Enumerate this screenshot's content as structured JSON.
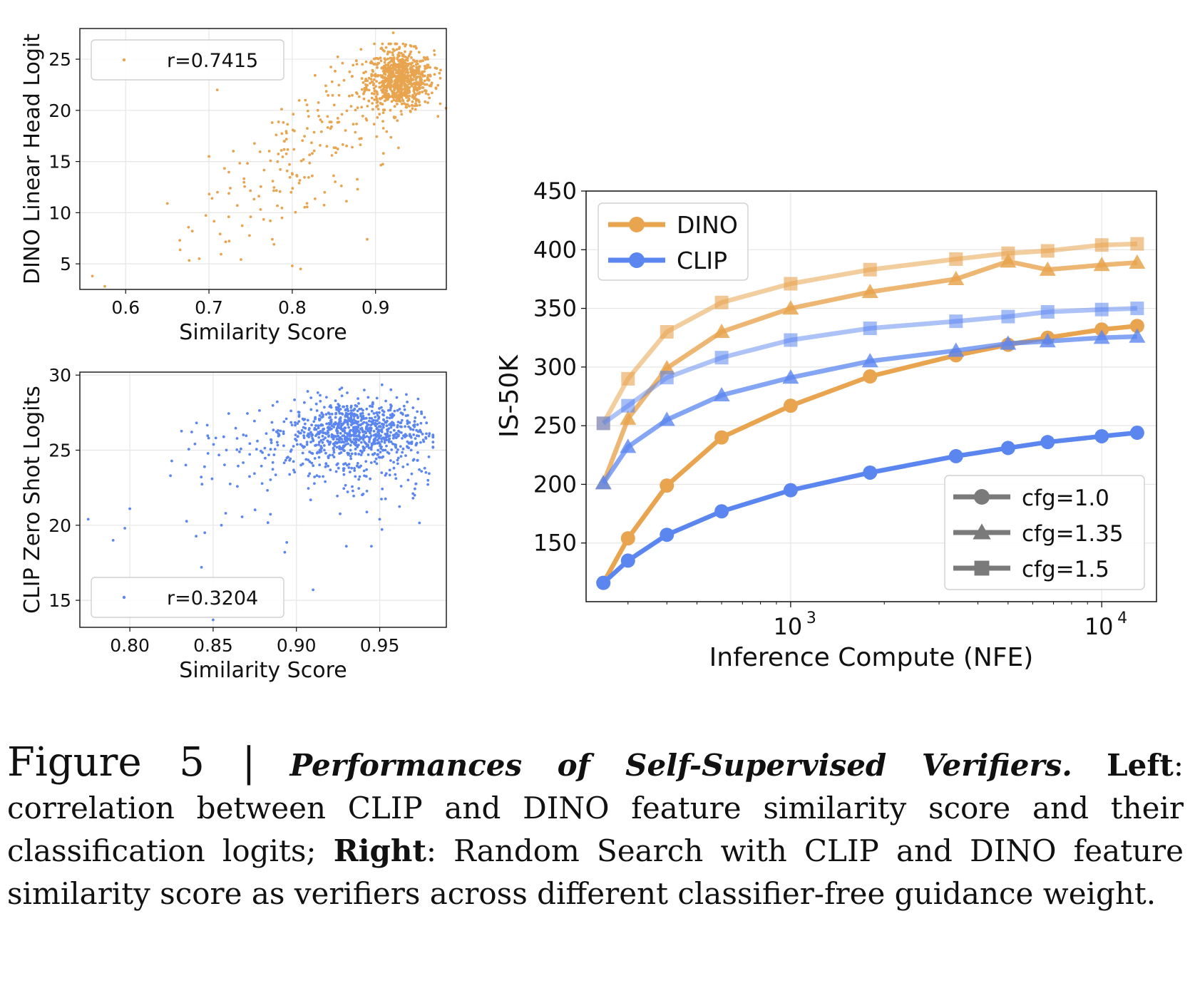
{
  "figure_label": "Figure 5",
  "caption_separator": "|",
  "caption_title": "Performances of Self-Supervised Verifiers.",
  "caption_left_label": "Left",
  "caption_left_text": ": correlation between CLIP and DINO feature similarity score and their classification logits;",
  "caption_right_label": "Right",
  "caption_right_text": ": Random Search with CLIP and DINO feature similarity score as verifiers across different classifier-free guidance weight.",
  "colors": {
    "dino": "#e8a44f",
    "clip": "#5b86f0",
    "legend_gray": "#7a7a7a",
    "grid": "#e6e6e6"
  },
  "chart_data": [
    {
      "id": "dino-scatter",
      "type": "scatter",
      "xlabel": "Similarity Score",
      "ylabel": "DINO Linear Head Logit",
      "xlim": [
        0.545,
        0.985
      ],
      "ylim": [
        2.5,
        28
      ],
      "xticks": [
        0.6,
        0.7,
        0.8,
        0.9
      ],
      "yticks": [
        5,
        10,
        15,
        20,
        25
      ],
      "xtick_labels": [
        "0.6",
        "0.7",
        "0.8",
        "0.9"
      ],
      "ytick_labels": [
        "5",
        "10",
        "15",
        "20",
        "25"
      ],
      "legend": "r=0.7415",
      "legend_loc": "upper left",
      "grid": true,
      "color": "#e8a44f",
      "point_count": 1000,
      "correlation": 0.7415,
      "cluster_center": [
        0.93,
        23
      ],
      "outliers": [
        [
          0.56,
          3.8
        ],
        [
          0.575,
          2.8
        ],
        [
          0.65,
          10.9
        ],
        [
          0.665,
          7.3
        ],
        [
          0.68,
          8.2
        ],
        [
          0.7,
          15.5
        ],
        [
          0.71,
          22
        ],
        [
          0.75,
          9.6
        ],
        [
          0.776,
          7.4
        ],
        [
          0.778,
          6.9
        ],
        [
          0.8,
          4.8
        ],
        [
          0.81,
          4.5
        ],
        [
          0.89,
          7.4
        ]
      ]
    },
    {
      "id": "clip-scatter",
      "type": "scatter",
      "xlabel": "Similarity Score",
      "ylabel": "CLIP Zero Shot Logits",
      "xlim": [
        0.77,
        0.99
      ],
      "ylim": [
        13.2,
        30.2
      ],
      "xticks": [
        0.8,
        0.85,
        0.9,
        0.95
      ],
      "yticks": [
        15,
        20,
        25,
        30
      ],
      "xtick_labels": [
        "0.80",
        "0.85",
        "0.90",
        "0.95"
      ],
      "ytick_labels": [
        "15",
        "20",
        "25",
        "30"
      ],
      "legend": "r=0.3204",
      "legend_loc": "lower left",
      "grid": true,
      "color": "#5b86f0",
      "point_count": 1000,
      "correlation": 0.3204,
      "cluster_center": [
        0.935,
        26.3
      ],
      "outliers": [
        [
          0.775,
          20.4
        ],
        [
          0.79,
          19
        ],
        [
          0.797,
          19.8
        ],
        [
          0.8,
          21.1
        ],
        [
          0.845,
          19.5
        ],
        [
          0.843,
          17.2
        ],
        [
          0.85,
          13.7
        ],
        [
          0.855,
          20
        ],
        [
          0.91,
          15.7
        ],
        [
          0.893,
          18.2
        ],
        [
          0.93,
          18.6
        ],
        [
          0.945,
          18.6
        ],
        [
          0.95,
          20.4
        ],
        [
          0.97,
          21.8
        ]
      ]
    },
    {
      "id": "is50k-line",
      "type": "line",
      "xlabel": "Inference Compute (NFE)",
      "ylabel": "IS-50K",
      "xscale": "log",
      "xlim": [
        220,
        15000
      ],
      "ylim": [
        100,
        450
      ],
      "yticks": [
        150,
        200,
        250,
        300,
        350,
        400,
        450
      ],
      "ytick_labels": [
        "150",
        "200",
        "250",
        "300",
        "350",
        "400",
        "450"
      ],
      "xticks": [
        1000,
        10000
      ],
      "xtick_bases": [
        "10",
        "10"
      ],
      "xtick_exponents": [
        "3",
        "4"
      ],
      "grid": true,
      "x": [
        250,
        300,
        400,
        600,
        1000,
        1800,
        3400,
        5000,
        6700,
        10000,
        13000
      ],
      "series": [
        {
          "name": "DINO",
          "verifier": "DINO",
          "cfg": "cfg=1.0",
          "marker": "circle",
          "color": "#e8a44f",
          "opacity": 1.0,
          "values": [
            116,
            154,
            199,
            240,
            267,
            292,
            310,
            319,
            325,
            332,
            335
          ]
        },
        {
          "verifier": "DINO",
          "cfg": "cfg=1.35",
          "marker": "triangle",
          "color": "#e8a44f",
          "opacity": 0.8,
          "values": [
            201,
            256,
            299,
            330,
            350,
            364,
            375,
            390,
            383,
            387,
            389
          ]
        },
        {
          "verifier": "DINO",
          "cfg": "cfg=1.5",
          "marker": "square",
          "color": "#e8a44f",
          "opacity": 0.55,
          "values": [
            252,
            290,
            330,
            355,
            371,
            383,
            392,
            397,
            399,
            404,
            405
          ]
        },
        {
          "name": "CLIP",
          "verifier": "CLIP",
          "cfg": "cfg=1.0",
          "marker": "circle",
          "color": "#5b86f0",
          "opacity": 1.0,
          "values": [
            116,
            135,
            157,
            177,
            195,
            210,
            224,
            231,
            236,
            241,
            244
          ]
        },
        {
          "verifier": "CLIP",
          "cfg": "cfg=1.35",
          "marker": "triangle",
          "color": "#5b86f0",
          "opacity": 0.75,
          "values": [
            201,
            232,
            255,
            276,
            291,
            305,
            314,
            320,
            322,
            325,
            326
          ]
        },
        {
          "verifier": "CLIP",
          "cfg": "cfg=1.5",
          "marker": "square",
          "color": "#5b86f0",
          "opacity": 0.5,
          "values": [
            252,
            267,
            291,
            308,
            323,
            333,
            339,
            343,
            347,
            349,
            350
          ]
        }
      ],
      "legend_verifiers": [
        {
          "label": "DINO",
          "color": "#e8a44f"
        },
        {
          "label": "CLIP",
          "color": "#5b86f0"
        }
      ],
      "legend_cfg": [
        {
          "label": "cfg=1.0",
          "marker": "circle"
        },
        {
          "label": "cfg=1.35",
          "marker": "triangle"
        },
        {
          "label": "cfg=1.5",
          "marker": "square"
        }
      ]
    }
  ]
}
